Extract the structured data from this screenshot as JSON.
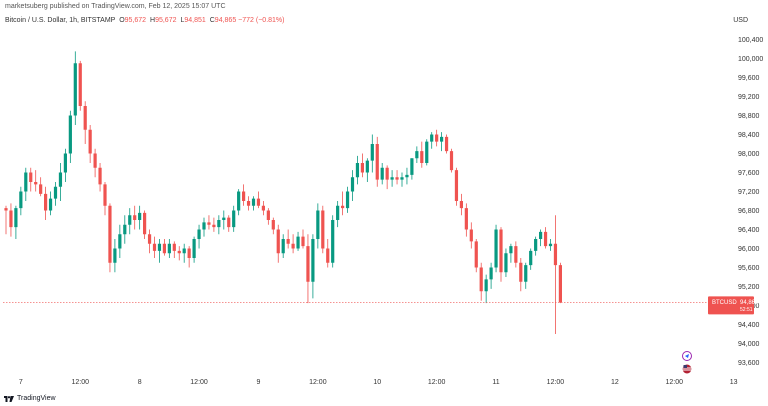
{
  "header": {
    "credit": "marketsuberg published on TradingView.com, Feb 12, 2025 15:07 UTC",
    "currency": "USD"
  },
  "legend": {
    "symbol": "Bitcoin / U.S. Dollar, 1h, BITSTAMP",
    "open_label": "O",
    "open_value": "95,672",
    "high_label": "H",
    "high_value": "95,672",
    "low_label": "L",
    "low_value": "94,851",
    "close_label": "C",
    "close_value": "94,865",
    "change": "−772 (−0.81%)"
  },
  "price_tag": {
    "ticker": "BTCUSD",
    "price": "94,865",
    "countdown": "52:51"
  },
  "footer": {
    "brand": "TradingView"
  },
  "colors": {
    "up": "#089981",
    "down": "#ef5350"
  },
  "chart_data": {
    "type": "candlestick",
    "y_range": [
      93400,
      100600
    ],
    "y_ticks": [
      100400,
      100000,
      99600,
      99200,
      98800,
      98400,
      98000,
      97600,
      97200,
      96800,
      96400,
      96000,
      95600,
      95200,
      94800,
      94400,
      94000,
      93600
    ],
    "y_tick_labels": [
      "100,400",
      "100,000",
      "99,600",
      "99,200",
      "98,800",
      "98,400",
      "98,000",
      "97,600",
      "97,200",
      "96,800",
      "96,400",
      "96,000",
      "95,600",
      "95,200",
      "94,800",
      "94,400",
      "94,000",
      "93,600"
    ],
    "x_ticks": [
      {
        "label": "7",
        "index": 3
      },
      {
        "label": "12:00",
        "index": 15
      },
      {
        "label": "8",
        "index": 27
      },
      {
        "label": "12:00",
        "index": 39
      },
      {
        "label": "9",
        "index": 51
      },
      {
        "label": "12:00",
        "index": 63
      },
      {
        "label": "10",
        "index": 75
      },
      {
        "label": "12:00",
        "index": 87
      },
      {
        "label": "11",
        "index": 99
      },
      {
        "label": "12:00",
        "index": 111
      },
      {
        "label": "12",
        "index": 123
      },
      {
        "label": "12:00",
        "index": 135
      },
      {
        "label": "13",
        "index": 147
      }
    ],
    "last_price": 94865,
    "ohlc": [
      [
        96850,
        96900,
        96300,
        96800
      ],
      [
        96800,
        96950,
        96250,
        96450
      ],
      [
        96450,
        96900,
        96200,
        96850
      ],
      [
        96850,
        97300,
        96700,
        97200
      ],
      [
        97200,
        97700,
        97000,
        97600
      ],
      [
        97600,
        97700,
        97200,
        97400
      ],
      [
        97400,
        97650,
        97200,
        97350
      ],
      [
        97350,
        97500,
        97100,
        97150
      ],
      [
        97150,
        97300,
        96600,
        96800
      ],
      [
        96800,
        97200,
        96700,
        97050
      ],
      [
        97050,
        97400,
        96900,
        97300
      ],
      [
        97300,
        97800,
        97000,
        97600
      ],
      [
        97600,
        98100,
        97400,
        98000
      ],
      [
        98000,
        98900,
        97800,
        98800
      ],
      [
        98800,
        100150,
        98600,
        99900
      ],
      [
        99900,
        99950,
        98900,
        99000
      ],
      [
        99000,
        99100,
        98200,
        98500
      ],
      [
        98500,
        98600,
        97800,
        98000
      ],
      [
        98000,
        98100,
        97500,
        97700
      ],
      [
        97700,
        97800,
        97200,
        97350
      ],
      [
        97350,
        97400,
        96700,
        96900
      ],
      [
        96900,
        96950,
        95500,
        95700
      ],
      [
        95700,
        96200,
        95500,
        96000
      ],
      [
        96000,
        96500,
        95800,
        96300
      ],
      [
        96300,
        96700,
        96100,
        96500
      ],
      [
        96500,
        96850,
        96300,
        96700
      ],
      [
        96700,
        96900,
        96400,
        96600
      ],
      [
        96600,
        96900,
        96400,
        96750
      ],
      [
        96750,
        96800,
        96200,
        96300
      ],
      [
        96300,
        96400,
        95900,
        96100
      ],
      [
        96100,
        96250,
        95800,
        95950
      ],
      [
        95950,
        96200,
        95700,
        96100
      ],
      [
        96100,
        96200,
        95850,
        95900
      ],
      [
        95900,
        96200,
        95800,
        96100
      ],
      [
        96100,
        96150,
        95800,
        95950
      ],
      [
        95950,
        96050,
        95750,
        95900
      ],
      [
        95900,
        96100,
        95700,
        96000
      ],
      [
        96000,
        96050,
        95600,
        95800
      ],
      [
        95800,
        96250,
        95700,
        96200
      ],
      [
        96200,
        96500,
        96000,
        96400
      ],
      [
        96400,
        96650,
        96250,
        96550
      ],
      [
        96550,
        96700,
        96400,
        96500
      ],
      [
        96500,
        96650,
        96350,
        96450
      ],
      [
        96450,
        96700,
        96300,
        96600
      ],
      [
        96600,
        96800,
        96400,
        96650
      ],
      [
        96650,
        96700,
        96350,
        96450
      ],
      [
        96450,
        96900,
        96350,
        96800
      ],
      [
        96800,
        97250,
        96700,
        97200
      ],
      [
        97200,
        97350,
        96900,
        97000
      ],
      [
        97000,
        97100,
        96800,
        96900
      ],
      [
        96900,
        97100,
        96800,
        97050
      ],
      [
        97050,
        97200,
        96850,
        96900
      ],
      [
        96900,
        97000,
        96700,
        96800
      ],
      [
        96800,
        96850,
        96500,
        96600
      ],
      [
        96600,
        96650,
        96300,
        96400
      ],
      [
        96400,
        96500,
        95700,
        95900
      ],
      [
        95900,
        96300,
        95800,
        96200
      ],
      [
        96200,
        96400,
        96000,
        96100
      ],
      [
        96100,
        96300,
        95900,
        96000
      ],
      [
        96000,
        96350,
        95950,
        96250
      ],
      [
        96250,
        96400,
        96000,
        96050
      ],
      [
        96050,
        96300,
        94850,
        95300
      ],
      [
        95300,
        96300,
        94950,
        96200
      ],
      [
        96200,
        96950,
        96000,
        96800
      ],
      [
        96800,
        96900,
        95900,
        96000
      ],
      [
        96000,
        96200,
        95600,
        95700
      ],
      [
        95700,
        96700,
        95600,
        96600
      ],
      [
        96600,
        97000,
        96450,
        96900
      ],
      [
        96900,
        97200,
        96700,
        96850
      ],
      [
        96850,
        97300,
        96750,
        97200
      ],
      [
        97200,
        97650,
        97000,
        97500
      ],
      [
        97500,
        97950,
        97350,
        97800
      ],
      [
        97800,
        98000,
        97500,
        97600
      ],
      [
        97600,
        97900,
        97400,
        97850
      ],
      [
        97850,
        98400,
        97600,
        98200
      ],
      [
        98200,
        98350,
        97300,
        97450
      ],
      [
        97450,
        97800,
        97350,
        97700
      ],
      [
        97700,
        97750,
        97250,
        97450
      ],
      [
        97450,
        97650,
        97300,
        97500
      ],
      [
        97500,
        97650,
        97350,
        97450
      ],
      [
        97450,
        97600,
        97300,
        97500
      ],
      [
        97500,
        97700,
        97350,
        97550
      ],
      [
        97550,
        97900,
        97450,
        97900
      ],
      [
        97900,
        98150,
        97800,
        98050
      ],
      [
        98050,
        98250,
        97700,
        97800
      ],
      [
        97800,
        98300,
        97750,
        98250
      ],
      [
        98250,
        98450,
        98100,
        98400
      ],
      [
        98400,
        98500,
        98150,
        98250
      ],
      [
        98250,
        98450,
        98050,
        98350
      ],
      [
        98350,
        98400,
        98000,
        98050
      ],
      [
        98050,
        98100,
        97600,
        97650
      ],
      [
        97650,
        97700,
        96900,
        97000
      ],
      [
        97000,
        97150,
        96700,
        96850
      ],
      [
        96850,
        96950,
        96250,
        96400
      ],
      [
        96400,
        96550,
        96000,
        96150
      ],
      [
        96150,
        96200,
        95500,
        95600
      ],
      [
        95600,
        95700,
        94900,
        95100
      ],
      [
        95100,
        95450,
        94850,
        95350
      ],
      [
        95350,
        95700,
        95150,
        95600
      ],
      [
        95600,
        96500,
        95500,
        96400
      ],
      [
        96400,
        96450,
        95300,
        95500
      ],
      [
        95500,
        96000,
        95400,
        95900
      ],
      [
        95900,
        96100,
        95700,
        96050
      ],
      [
        96050,
        96150,
        95600,
        95700
      ],
      [
        95700,
        95800,
        95100,
        95300
      ],
      [
        95300,
        95700,
        95150,
        95650
      ],
      [
        95650,
        96000,
        95550,
        95950
      ],
      [
        95950,
        96250,
        95850,
        96200
      ],
      [
        96200,
        96400,
        96050,
        96350
      ],
      [
        96350,
        96450,
        96000,
        96050
      ],
      [
        96050,
        96200,
        95950,
        96100
      ],
      [
        96100,
        96700,
        94200,
        95650
      ],
      [
        95650,
        95700,
        94850,
        94865
      ]
    ]
  }
}
